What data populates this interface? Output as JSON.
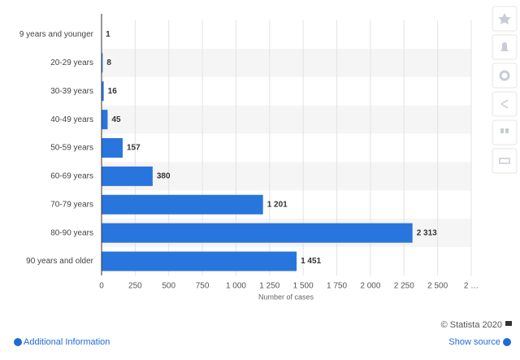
{
  "chart_data": {
    "type": "bar",
    "orientation": "horizontal",
    "categories": [
      "9 years and younger",
      "20-29 years",
      "30-39 years",
      "40-49 years",
      "50-59 years",
      "60-69 years",
      "70-79 years",
      "80-90 years",
      "90 years and older"
    ],
    "values": [
      1,
      8,
      16,
      45,
      157,
      380,
      1201,
      2313,
      1451
    ],
    "value_labels": [
      "1",
      "8",
      "16",
      "45",
      "157",
      "380",
      "1 201",
      "2 313",
      "1 451"
    ],
    "color": "#2876dd",
    "xlabel": "Number of cases",
    "xlim": [
      0,
      2750
    ],
    "xticks": [
      0,
      250,
      500,
      750,
      {
        "value": 1000,
        "label": "1 000"
      },
      {
        "value": 1250,
        "label": "1 250"
      },
      {
        "value": 1500,
        "label": "1 500"
      },
      {
        "value": 1750,
        "label": "1 750"
      },
      {
        "value": 2000,
        "label": "2 000"
      },
      {
        "value": 2250,
        "label": "2 250"
      },
      {
        "value": 2500,
        "label": "2 500"
      },
      {
        "value": 2750,
        "label": "2 …"
      }
    ],
    "grid": true
  },
  "footer": {
    "credit": "© Statista 2020",
    "info": "Additional Information",
    "source": "Show source"
  }
}
